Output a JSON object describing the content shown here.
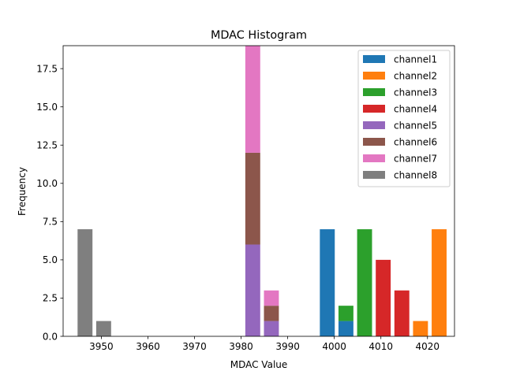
{
  "chart_data": {
    "type": "bar",
    "title": "MDAC Histogram",
    "xlabel": "MDAC Value",
    "ylabel": "Frequency",
    "xlim": [
      3941.8,
      4025.8
    ],
    "ylim": [
      0,
      19
    ],
    "xticks": [
      3950,
      3960,
      3970,
      3980,
      3990,
      4000,
      4010,
      4020
    ],
    "yticks": [
      0.0,
      2.5,
      5.0,
      7.5,
      10.0,
      12.5,
      15.0,
      17.5
    ],
    "ytick_labels": [
      "0.0",
      "2.5",
      "5.0",
      "7.5",
      "10.0",
      "12.5",
      "15.0",
      "17.5"
    ],
    "bar_width": 3.2,
    "stacked": true,
    "legend_position": "upper-right",
    "series": [
      {
        "name": "channel1",
        "color": "#1f77b4",
        "points": [
          {
            "x": 3998.5,
            "y": 7
          },
          {
            "x": 4002.5,
            "y": 1
          }
        ]
      },
      {
        "name": "channel2",
        "color": "#ff7f0e",
        "points": [
          {
            "x": 4018.5,
            "y": 1
          },
          {
            "x": 4022.5,
            "y": 7
          }
        ]
      },
      {
        "name": "channel3",
        "color": "#2ca02c",
        "points": [
          {
            "x": 4002.5,
            "y": 1
          },
          {
            "x": 4006.5,
            "y": 7
          }
        ]
      },
      {
        "name": "channel4",
        "color": "#d62728",
        "points": [
          {
            "x": 4010.5,
            "y": 5
          },
          {
            "x": 4014.5,
            "y": 3
          }
        ]
      },
      {
        "name": "channel5",
        "color": "#9467bd",
        "points": [
          {
            "x": 3982.5,
            "y": 6
          },
          {
            "x": 3986.5,
            "y": 1
          }
        ]
      },
      {
        "name": "channel6",
        "color": "#8c564b",
        "points": [
          {
            "x": 3982.5,
            "y": 6
          },
          {
            "x": 3986.5,
            "y": 1
          }
        ]
      },
      {
        "name": "channel7",
        "color": "#e377c2",
        "points": [
          {
            "x": 3982.5,
            "y": 7
          },
          {
            "x": 3986.5,
            "y": 1
          }
        ]
      },
      {
        "name": "channel8",
        "color": "#7f7f7f",
        "points": [
          {
            "x": 3946.5,
            "y": 7
          },
          {
            "x": 3950.5,
            "y": 1
          }
        ]
      }
    ]
  }
}
